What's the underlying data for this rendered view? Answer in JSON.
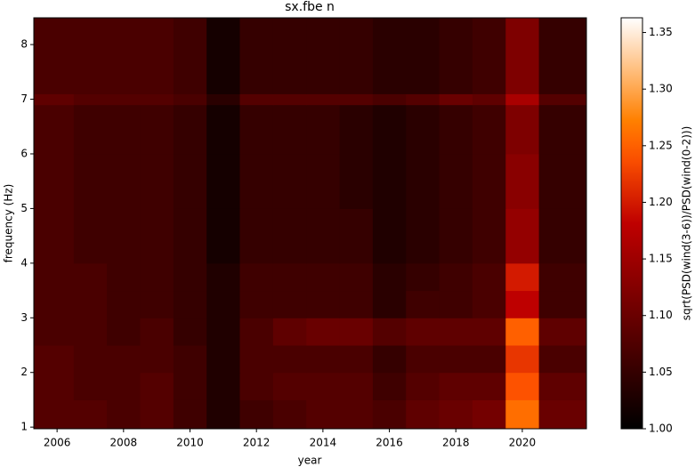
{
  "chart_data": {
    "type": "heatmap",
    "title": "sx.fbe n",
    "x_label": "year",
    "y_label": "frequency (Hz)",
    "colorbar_label": "sqrt(PSD(wind(3-6))/PSD(wind(0-2)))",
    "colormap": "gist_heat",
    "x_edges": [
      2005.3,
      2006.5,
      2007.5,
      2008.5,
      2009.5,
      2010.5,
      2011.5,
      2012.5,
      2013.5,
      2014.5,
      2015.5,
      2016.5,
      2017.5,
      2018.5,
      2019.5,
      2020.5,
      2021.93
    ],
    "y_edges": [
      0.97,
      1.5,
      2,
      2.5,
      3,
      3.5,
      4,
      5,
      6,
      6.9,
      7.1,
      8.49
    ],
    "values": [
      [
        1.08,
        1.08,
        1.07,
        1.08,
        1.06,
        1.03,
        1.06,
        1.07,
        1.08,
        1.08,
        1.07,
        1.09,
        1.1,
        1.11,
        1.26,
        1.1
      ],
      [
        1.08,
        1.07,
        1.07,
        1.08,
        1.06,
        1.03,
        1.07,
        1.08,
        1.08,
        1.08,
        1.06,
        1.08,
        1.09,
        1.09,
        1.24,
        1.09
      ],
      [
        1.08,
        1.07,
        1.07,
        1.07,
        1.06,
        1.03,
        1.07,
        1.07,
        1.07,
        1.07,
        1.05,
        1.07,
        1.07,
        1.07,
        1.22,
        1.07
      ],
      [
        1.07,
        1.07,
        1.06,
        1.07,
        1.05,
        1.03,
        1.07,
        1.09,
        1.1,
        1.1,
        1.08,
        1.09,
        1.09,
        1.09,
        1.25,
        1.09
      ],
      [
        1.07,
        1.07,
        1.06,
        1.06,
        1.05,
        1.03,
        1.06,
        1.06,
        1.06,
        1.06,
        1.04,
        1.06,
        1.06,
        1.07,
        1.18,
        1.06
      ],
      [
        1.07,
        1.07,
        1.06,
        1.06,
        1.05,
        1.03,
        1.06,
        1.06,
        1.06,
        1.06,
        1.04,
        1.05,
        1.06,
        1.07,
        1.2,
        1.06
      ],
      [
        1.07,
        1.06,
        1.06,
        1.06,
        1.05,
        1.02,
        1.05,
        1.05,
        1.05,
        1.05,
        1.03,
        1.04,
        1.05,
        1.06,
        1.14,
        1.05
      ],
      [
        1.07,
        1.06,
        1.06,
        1.06,
        1.05,
        1.02,
        1.05,
        1.05,
        1.05,
        1.04,
        1.03,
        1.04,
        1.05,
        1.06,
        1.13,
        1.05
      ],
      [
        1.07,
        1.06,
        1.06,
        1.06,
        1.05,
        1.02,
        1.05,
        1.05,
        1.05,
        1.04,
        1.03,
        1.04,
        1.05,
        1.06,
        1.12,
        1.05
      ],
      [
        1.09,
        1.08,
        1.08,
        1.08,
        1.07,
        1.04,
        1.08,
        1.08,
        1.08,
        1.08,
        1.07,
        1.08,
        1.1,
        1.09,
        1.16,
        1.08
      ],
      [
        1.07,
        1.07,
        1.07,
        1.07,
        1.06,
        1.02,
        1.05,
        1.05,
        1.05,
        1.05,
        1.04,
        1.04,
        1.05,
        1.06,
        1.12,
        1.05
      ]
    ],
    "xlim": [
      2005.3,
      2021.93
    ],
    "xticks": [
      2006,
      2008,
      2010,
      2012,
      2014,
      2016,
      2018,
      2020
    ],
    "ylim": [
      0.97,
      8.49
    ],
    "yticks": [
      1,
      2,
      3,
      4,
      5,
      6,
      7,
      8
    ],
    "clim": [
      1.0,
      1.363
    ],
    "cticks": [
      {
        "value": 1.0,
        "label": "1.00"
      },
      {
        "value": 1.05,
        "label": "1.05"
      },
      {
        "value": 1.1,
        "label": "1.10"
      },
      {
        "value": 1.15,
        "label": "1.15"
      },
      {
        "value": 1.2,
        "label": "1.20"
      },
      {
        "value": 1.25,
        "label": "1.25"
      },
      {
        "value": 1.3,
        "label": "1.30"
      },
      {
        "value": 1.35,
        "label": "1.35"
      }
    ]
  }
}
